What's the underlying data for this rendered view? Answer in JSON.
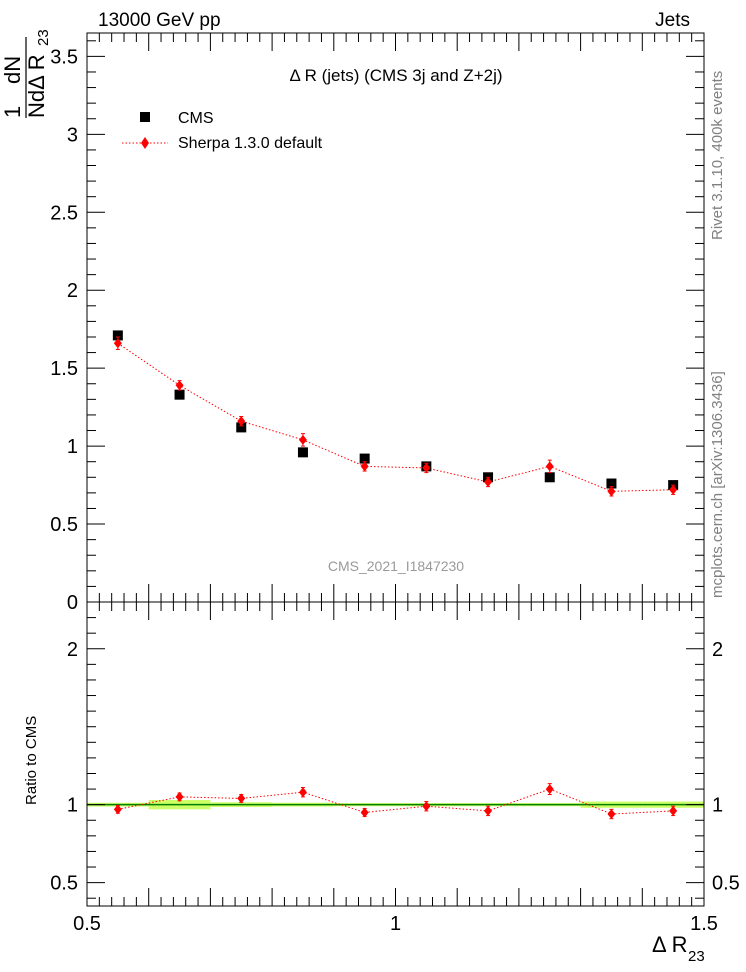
{
  "header": {
    "left": "13000 GeV pp",
    "right": "Jets"
  },
  "side_text": {
    "top": "Rivet 3.1.10,  400k events",
    "bottom": "mcplots.cern.ch [arXiv:1306.3436]"
  },
  "watermark": "CMS_2021_I1847230",
  "chart_data": [
    {
      "type": "scatter",
      "title": "Δ R (jets) (CMS 3j and Z+2j)",
      "ylabel": {
        "num": "1",
        "frac_num": "dN",
        "frac_den": "NdΔ R",
        "sub": "23"
      },
      "xlim": [
        0.5,
        1.5
      ],
      "ylim": [
        0,
        3.65
      ],
      "yticks": [
        "0",
        "0.5",
        "1",
        "1.5",
        "2",
        "2.5",
        "3",
        "3.5"
      ],
      "x": [
        0.55,
        0.65,
        0.75,
        0.85,
        0.95,
        1.05,
        1.15,
        1.25,
        1.35,
        1.45
      ],
      "legend": {
        "placement": "top-left"
      },
      "series": [
        {
          "name": "CMS",
          "color": "#000000",
          "marker": "square",
          "values": [
            1.71,
            1.33,
            1.12,
            0.96,
            0.92,
            0.87,
            0.8,
            0.8,
            0.76,
            0.75
          ]
        },
        {
          "name": "Sherpa 1.3.0 default",
          "color": "#ff0000",
          "marker": "diamond",
          "line": "dotted",
          "values": [
            1.66,
            1.39,
            1.16,
            1.04,
            0.87,
            0.86,
            0.77,
            0.87,
            0.71,
            0.72
          ],
          "errors": [
            0.04,
            0.03,
            0.03,
            0.04,
            0.03,
            0.03,
            0.03,
            0.04,
            0.03,
            0.03
          ]
        }
      ]
    },
    {
      "type": "scatter",
      "ylabel": "Ratio to CMS",
      "xlabel": {
        "main": "Δ R",
        "sub": "23"
      },
      "xlim": [
        0.5,
        1.5
      ],
      "ylim": [
        0.35,
        2.3
      ],
      "xticks": [
        "0.5",
        "1",
        "1.5"
      ],
      "yticks": [
        "0.5",
        "1",
        "2"
      ],
      "x": [
        0.55,
        0.65,
        0.75,
        0.85,
        0.95,
        1.05,
        1.15,
        1.25,
        1.35,
        1.45
      ],
      "band_color": "#ccff66",
      "reference_color": "#008000",
      "series": [
        {
          "name": "Sherpa 1.3.0 default",
          "color": "#ff0000",
          "values": [
            0.97,
            1.05,
            1.04,
            1.08,
            0.95,
            0.99,
            0.96,
            1.1,
            0.94,
            0.96
          ],
          "errors": [
            0.025,
            0.025,
            0.025,
            0.03,
            0.025,
            0.03,
            0.03,
            0.035,
            0.03,
            0.03
          ]
        }
      ]
    }
  ]
}
